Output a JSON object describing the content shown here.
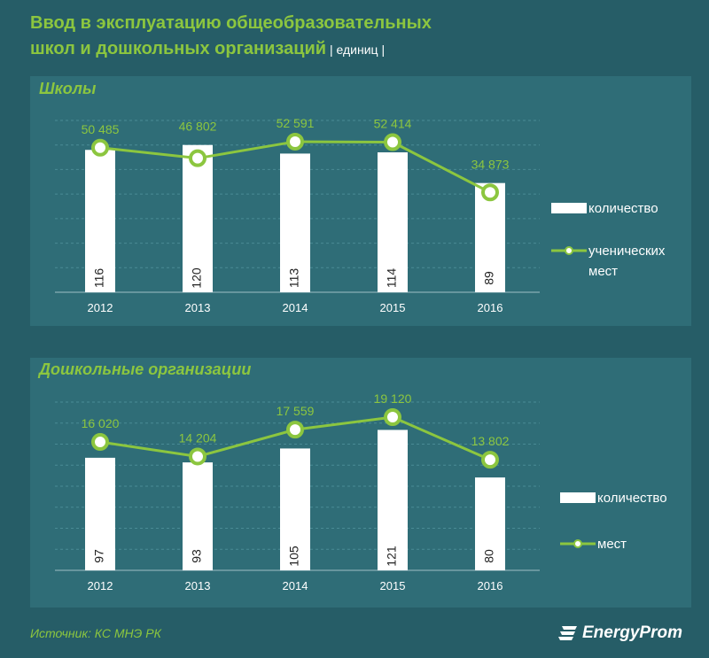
{
  "title": {
    "line1": "Ввод в эксплуатацию общеобразовательных",
    "line2": "школ и дошкольных организаций",
    "unit": " | единиц |"
  },
  "colors": {
    "background": "#265d67",
    "panel": "#2f6d77",
    "accent": "#8cc63f",
    "bar": "#ffffff"
  },
  "chart_data": [
    {
      "type": "bar+line",
      "title": "Школы",
      "categories": [
        "2012",
        "2013",
        "2014",
        "2015",
        "2016"
      ],
      "series": [
        {
          "name": "количество",
          "kind": "bar",
          "values": [
            116,
            120,
            113,
            114,
            89
          ],
          "labels": [
            "116",
            "120",
            "113",
            "114",
            "89"
          ]
        },
        {
          "name": "ученических мест",
          "kind": "line",
          "values": [
            50485,
            46802,
            52591,
            52414,
            34873
          ],
          "labels": [
            "50 485",
            "46 802",
            "52 591",
            "52 414",
            "34 873"
          ]
        }
      ],
      "bar_ylim": [
        0,
        140
      ],
      "line_ylim": [
        0,
        60000
      ],
      "legend": [
        "количество",
        "ученических",
        "мест"
      ]
    },
    {
      "type": "bar+line",
      "title": "Дошкольные организации",
      "categories": [
        "2012",
        "2013",
        "2014",
        "2015",
        "2016"
      ],
      "series": [
        {
          "name": "количество",
          "kind": "bar",
          "values": [
            97,
            93,
            105,
            121,
            80
          ],
          "labels": [
            "97",
            "93",
            "105",
            "121",
            "80"
          ]
        },
        {
          "name": "мест",
          "kind": "line",
          "values": [
            16020,
            14204,
            17559,
            19120,
            13802
          ],
          "labels": [
            "16 020",
            "14 204",
            "17 559",
            "19 120",
            "13 802"
          ]
        }
      ],
      "bar_ylim": [
        0,
        145
      ],
      "line_ylim": [
        0,
        21000
      ],
      "legend": [
        "количество",
        "мест"
      ]
    }
  ],
  "footer": {
    "source": "Источник: КС МНЭ РК",
    "logo": "EnergyProm"
  }
}
